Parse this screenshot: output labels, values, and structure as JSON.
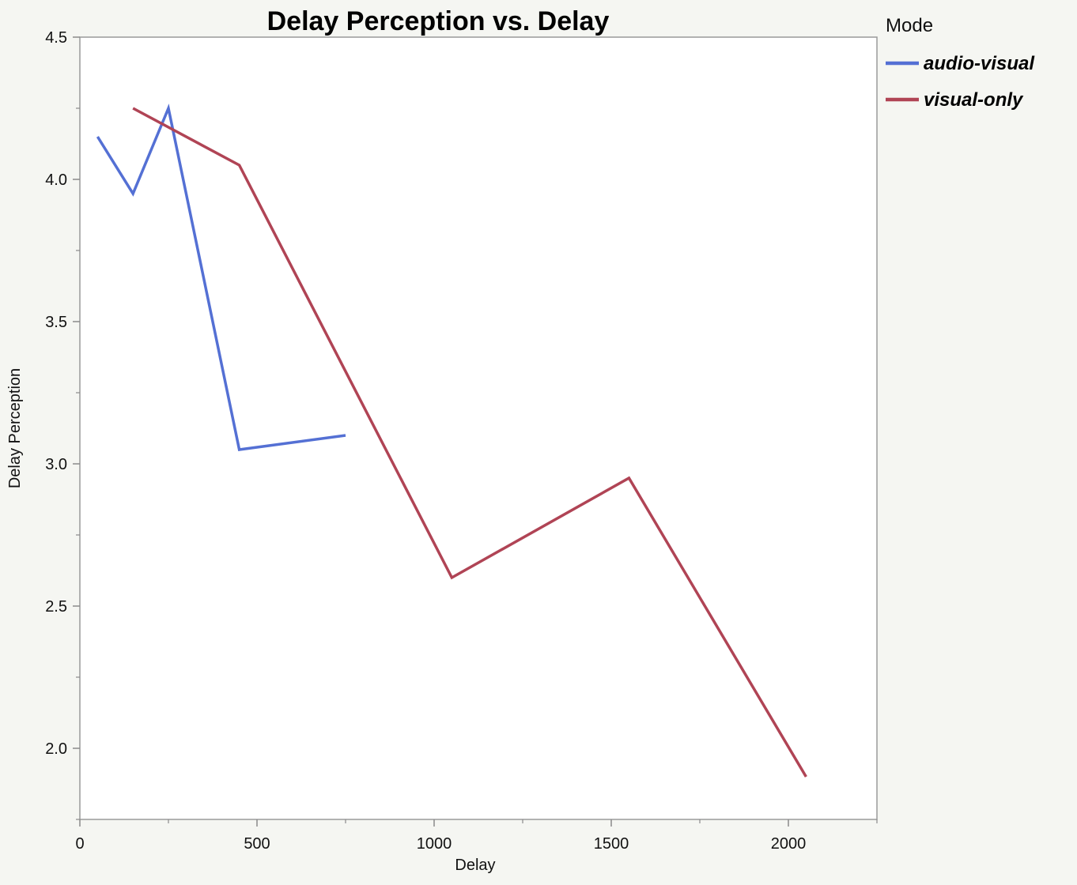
{
  "chart_data": {
    "type": "line",
    "title": "Delay Perception vs. Delay",
    "xlabel": "Delay",
    "ylabel": "Delay Perception",
    "xlim": [
      0,
      2250
    ],
    "ylim": [
      1.75,
      4.5
    ],
    "x_ticks": [
      0,
      500,
      1000,
      1500,
      2000
    ],
    "x_tick_labels": [
      "0",
      "500",
      "1000",
      "1500",
      "2000"
    ],
    "x_minor_ticks": [
      250,
      750,
      1250,
      1750,
      2250
    ],
    "y_ticks": [
      2.0,
      2.5,
      3.0,
      3.5,
      4.0,
      4.5
    ],
    "y_tick_labels": [
      "2.0",
      "2.5",
      "3.0",
      "3.5",
      "4.0",
      "4.5"
    ],
    "y_minor_ticks": [
      1.75,
      2.25,
      2.75,
      3.25,
      3.75,
      4.25
    ],
    "grid": false,
    "legend": {
      "title": "Mode",
      "position": "right"
    },
    "series": [
      {
        "name": "audio-visual",
        "color": "#5470d4",
        "x": [
          50,
          150,
          250,
          450,
          750
        ],
        "y": [
          4.15,
          3.95,
          4.25,
          3.05,
          3.1
        ]
      },
      {
        "name": "visual-only",
        "color": "#b04455",
        "x": [
          150,
          450,
          1050,
          1550,
          2050
        ],
        "y": [
          4.25,
          4.05,
          2.6,
          2.95,
          1.9
        ]
      }
    ]
  }
}
